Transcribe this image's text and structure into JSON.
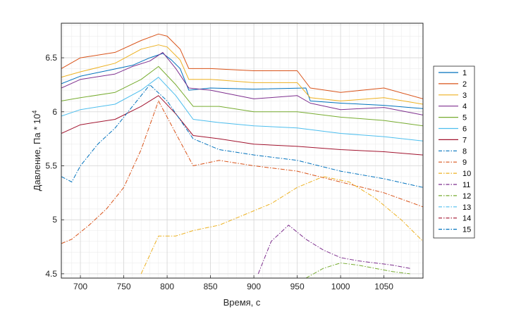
{
  "chart_data": {
    "type": "line",
    "xlabel": "Время, с",
    "ylabel": "Давление, Па * 10",
    "ylabel_exponent": "4",
    "xlim": [
      678,
      1095
    ],
    "ylim": [
      4.46,
      6.82
    ],
    "xticks": [
      700,
      750,
      800,
      850,
      900,
      950,
      1000,
      1050
    ],
    "yticks": [
      4.5,
      5,
      5.5,
      6,
      6.5
    ],
    "xtick_labels": [
      "700",
      "750",
      "800",
      "850",
      "900",
      "950",
      "1000",
      "1050"
    ],
    "ytick_labels": [
      "4.5",
      "5",
      "5.5",
      "6",
      "6.5"
    ],
    "grid": true,
    "minor_grid": true,
    "legend_position": "right",
    "series": [
      {
        "name": "1",
        "color": "#0072BD",
        "style": "solid",
        "x": [
          678,
          700,
          730,
          760,
          780,
          795,
          805,
          815,
          825,
          850,
          900,
          960,
          965,
          1000,
          1050,
          1095
        ],
        "y": [
          6.26,
          6.33,
          6.38,
          6.43,
          6.5,
          6.54,
          6.48,
          6.4,
          6.2,
          6.22,
          6.21,
          6.22,
          6.1,
          6.08,
          6.06,
          6.03
        ]
      },
      {
        "name": "2",
        "color": "#D95319",
        "style": "solid",
        "x": [
          678,
          700,
          740,
          770,
          790,
          800,
          815,
          825,
          850,
          900,
          950,
          965,
          1000,
          1050,
          1095
        ],
        "y": [
          6.4,
          6.5,
          6.55,
          6.66,
          6.72,
          6.7,
          6.58,
          6.4,
          6.4,
          6.38,
          6.38,
          6.22,
          6.18,
          6.22,
          6.12
        ]
      },
      {
        "name": "3",
        "color": "#EDB120",
        "style": "solid",
        "x": [
          678,
          700,
          740,
          770,
          790,
          800,
          815,
          825,
          850,
          900,
          950,
          965,
          1000,
          1050,
          1095
        ],
        "y": [
          6.32,
          6.37,
          6.45,
          6.58,
          6.62,
          6.6,
          6.48,
          6.3,
          6.3,
          6.27,
          6.27,
          6.13,
          6.1,
          6.13,
          6.07
        ]
      },
      {
        "name": "4",
        "color": "#7E2F8E",
        "style": "solid",
        "x": [
          678,
          700,
          740,
          760,
          780,
          795,
          810,
          825,
          850,
          900,
          950,
          965,
          1000,
          1050,
          1095
        ],
        "y": [
          6.22,
          6.3,
          6.35,
          6.42,
          6.47,
          6.55,
          6.4,
          6.22,
          6.2,
          6.12,
          6.15,
          6.08,
          6.02,
          6.04,
          5.97
        ]
      },
      {
        "name": "5",
        "color": "#77AC30",
        "style": "solid",
        "x": [
          678,
          700,
          740,
          770,
          790,
          810,
          830,
          860,
          900,
          950,
          1000,
          1050,
          1095
        ],
        "y": [
          6.1,
          6.13,
          6.18,
          6.3,
          6.42,
          6.25,
          6.05,
          6.05,
          6.0,
          6.0,
          5.95,
          5.92,
          5.87
        ]
      },
      {
        "name": "6",
        "color": "#4DBEEE",
        "style": "solid",
        "x": [
          678,
          700,
          740,
          770,
          790,
          810,
          830,
          860,
          900,
          950,
          1000,
          1050,
          1095
        ],
        "y": [
          5.96,
          6.02,
          6.07,
          6.2,
          6.32,
          6.15,
          5.93,
          5.9,
          5.87,
          5.85,
          5.8,
          5.77,
          5.73
        ]
      },
      {
        "name": "7",
        "color": "#A2142F",
        "style": "solid",
        "x": [
          678,
          700,
          740,
          770,
          790,
          810,
          830,
          860,
          900,
          950,
          1000,
          1050,
          1095
        ],
        "y": [
          5.8,
          5.88,
          5.93,
          6.05,
          6.15,
          5.98,
          5.78,
          5.75,
          5.7,
          5.68,
          5.65,
          5.63,
          5.6
        ]
      },
      {
        "name": "8",
        "color": "#0072BD",
        "style": "dashdot",
        "x": [
          678,
          690,
          700,
          720,
          740,
          760,
          780,
          800,
          830,
          860,
          900,
          950,
          1000,
          1050,
          1095
        ],
        "y": [
          5.4,
          5.35,
          5.5,
          5.7,
          5.85,
          6.05,
          6.25,
          6.1,
          5.75,
          5.65,
          5.6,
          5.55,
          5.45,
          5.38,
          5.3
        ]
      },
      {
        "name": "9",
        "color": "#D95319",
        "style": "dashdot",
        "x": [
          678,
          690,
          710,
          730,
          750,
          770,
          790,
          810,
          830,
          860,
          900,
          950,
          1000,
          1050,
          1095
        ],
        "y": [
          4.78,
          4.82,
          4.95,
          5.1,
          5.3,
          5.65,
          6.1,
          5.8,
          5.5,
          5.55,
          5.5,
          5.45,
          5.35,
          5.25,
          5.12
        ]
      },
      {
        "name": "10",
        "color": "#EDB120",
        "style": "dashdot",
        "x": [
          770,
          790,
          810,
          830,
          860,
          890,
          920,
          950,
          980,
          1010,
          1040,
          1070,
          1095
        ],
        "y": [
          4.5,
          4.85,
          4.85,
          4.9,
          4.95,
          5.05,
          5.15,
          5.3,
          5.4,
          5.35,
          5.2,
          5.0,
          4.8
        ]
      },
      {
        "name": "11",
        "color": "#7E2F8E",
        "style": "dashdot",
        "x": [
          905,
          920,
          940,
          960,
          980,
          1000,
          1020,
          1040,
          1060,
          1080
        ],
        "y": [
          4.5,
          4.8,
          4.95,
          4.82,
          4.72,
          4.65,
          4.62,
          4.6,
          4.58,
          4.55
        ]
      },
      {
        "name": "12",
        "color": "#77AC30",
        "style": "dashdot",
        "x": [
          960,
          980,
          1000,
          1020,
          1040,
          1060,
          1080
        ],
        "y": [
          4.46,
          4.55,
          4.6,
          4.58,
          4.55,
          4.52,
          4.5
        ]
      },
      {
        "name": "13",
        "color": "#4DBEEE",
        "style": "dashdot",
        "x": [],
        "y": []
      },
      {
        "name": "14",
        "color": "#A2142F",
        "style": "dashdot",
        "x": [],
        "y": []
      },
      {
        "name": "15",
        "color": "#0072BD",
        "style": "dashdot",
        "x": [],
        "y": []
      }
    ]
  }
}
